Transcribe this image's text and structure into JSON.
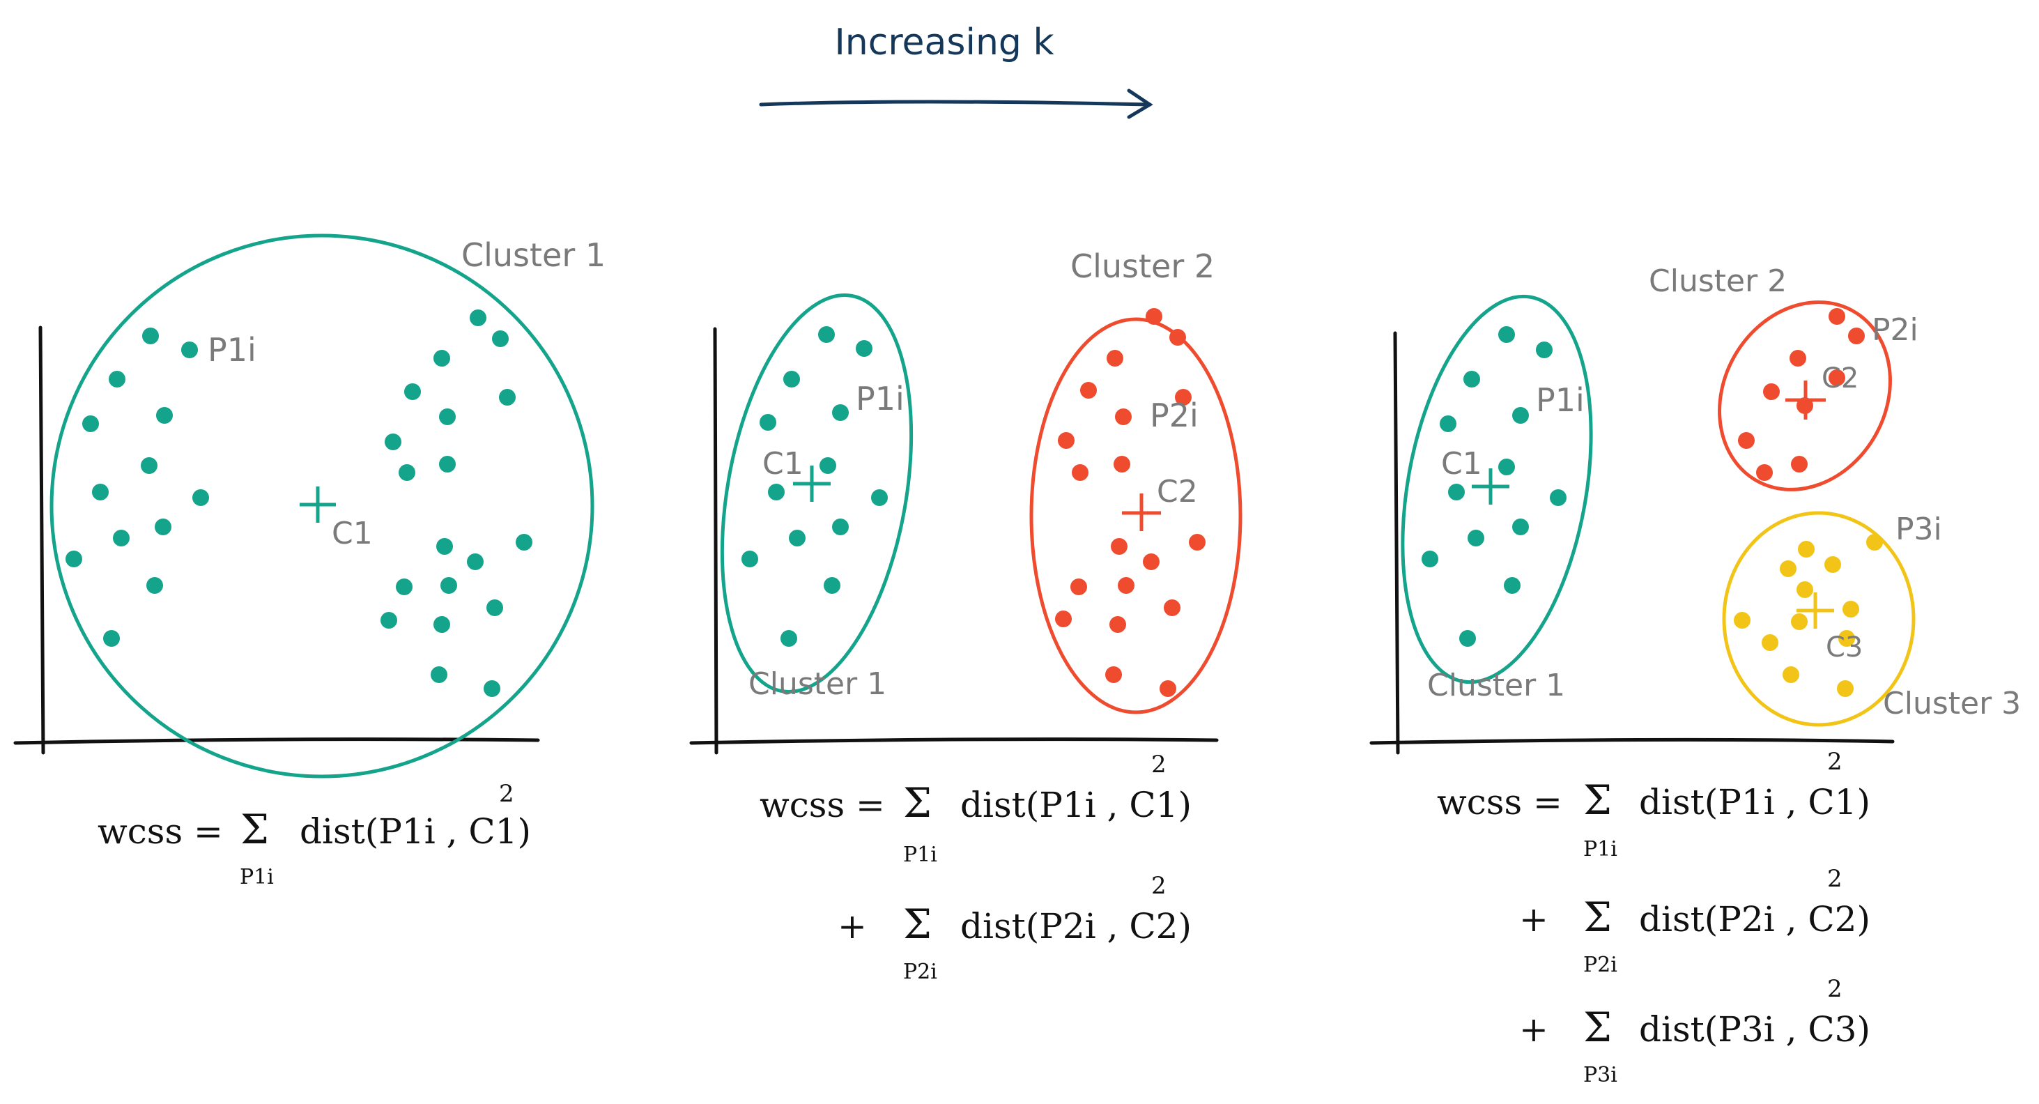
{
  "header": {
    "title": "Increasing k"
  },
  "colors": {
    "cluster1": "#14a38b",
    "cluster2": "#ef4b2f",
    "cluster3": "#f2c417",
    "axis": "#111111",
    "label": "#7a7a7a",
    "arrow": "#14375a"
  },
  "panels": [
    {
      "id": "k1",
      "cluster_labels": [
        "Cluster 1"
      ],
      "point_labels": [
        "P1i"
      ],
      "centroid_labels": [
        "C1"
      ],
      "formula": {
        "lhs": "wcss =",
        "terms": [
          {
            "prefix": "",
            "sum_sub": "P1i",
            "expr": "dist(P1i , C1)",
            "exp": "2"
          }
        ]
      }
    },
    {
      "id": "k2",
      "cluster_labels": [
        "Cluster 1",
        "Cluster 2"
      ],
      "point_labels": [
        "P1i",
        "P2i"
      ],
      "centroid_labels": [
        "C1",
        "C2"
      ],
      "formula": {
        "lhs": "wcss =",
        "terms": [
          {
            "prefix": "",
            "sum_sub": "P1i",
            "expr": "dist(P1i , C1)",
            "exp": "2"
          },
          {
            "prefix": "+",
            "sum_sub": "P2i",
            "expr": "dist(P2i , C2)",
            "exp": "2"
          }
        ]
      }
    },
    {
      "id": "k3",
      "cluster_labels": [
        "Cluster 1",
        "Cluster 2",
        "Cluster 3"
      ],
      "point_labels": [
        "P1i",
        "P2i",
        "P3i"
      ],
      "centroid_labels": [
        "C1",
        "C2",
        "C3"
      ],
      "formula": {
        "lhs": "wcss =",
        "terms": [
          {
            "prefix": "",
            "sum_sub": "P1i",
            "expr": "dist(P1i , C1)",
            "exp": "2"
          },
          {
            "prefix": "+",
            "sum_sub": "P2i",
            "expr": "dist(P2i , C2)",
            "exp": "2"
          },
          {
            "prefix": "+",
            "sum_sub": "P3i",
            "expr": "dist(P3i , C3)",
            "exp": "2"
          }
        ]
      }
    }
  ],
  "sum_symbol": "Σ"
}
